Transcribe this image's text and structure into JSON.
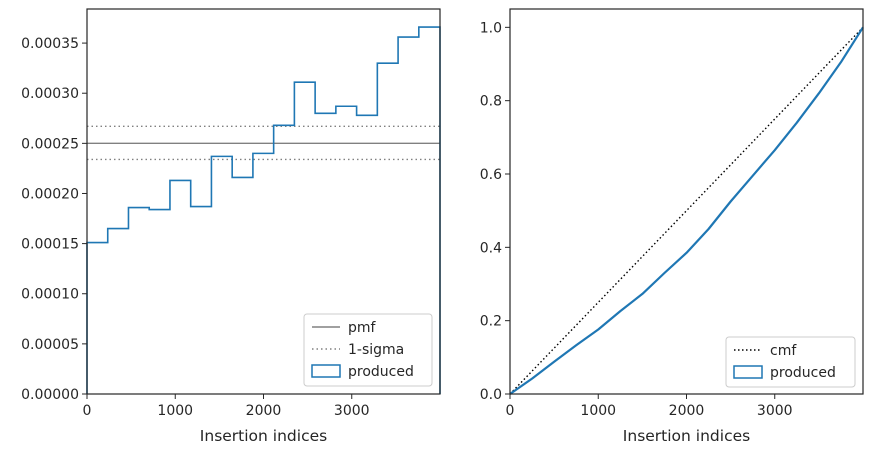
{
  "colors": {
    "produced": "#1f77b4",
    "pmf": "#808080",
    "sigma": "#808080",
    "cmf": "#000000",
    "frame": "#262626"
  },
  "chart_data": [
    {
      "type": "step",
      "xlabel": "Insertion indices",
      "ylabel": "",
      "xlim": [
        0,
        4000
      ],
      "ylim": [
        0,
        0.000384
      ],
      "xticks": [
        0,
        1000,
        2000,
        3000
      ],
      "xtick_labels": [
        "0",
        "1000",
        "2000",
        "3000"
      ],
      "yticks": [
        0,
        5e-05,
        0.0001,
        0.00015,
        0.0002,
        0.00025,
        0.0003,
        0.00035
      ],
      "ytick_labels": [
        "0.00000",
        "0.00005",
        "0.00010",
        "0.00015",
        "0.00020",
        "0.00025",
        "0.00030",
        "0.00035"
      ],
      "lines": [
        {
          "name": "pmf",
          "y": 0.00025,
          "style": "solid"
        },
        {
          "name": "1-sigma",
          "y": [
            0.000234,
            0.000267
          ],
          "style": "dotted"
        }
      ],
      "series": [
        {
          "name": "produced",
          "bin_edges": [
            0,
            235,
            470,
            705,
            940,
            1175,
            1410,
            1645,
            1880,
            2115,
            2350,
            2585,
            2820,
            3055,
            3290,
            3525,
            3760,
            4000
          ],
          "values": [
            0.000151,
            0.000165,
            0.000186,
            0.000184,
            0.000213,
            0.000187,
            0.000237,
            0.000216,
            0.00024,
            0.000268,
            0.000311,
            0.00028,
            0.000287,
            0.000278,
            0.00033,
            0.000356,
            0.000366
          ]
        }
      ],
      "legend": {
        "placement": "lower-right",
        "entries": [
          "pmf",
          "1-sigma",
          "produced"
        ]
      }
    },
    {
      "type": "line",
      "xlabel": "Insertion indices",
      "ylabel": "",
      "xlim": [
        0,
        4000
      ],
      "ylim": [
        0,
        1.05
      ],
      "xticks": [
        0,
        1000,
        2000,
        3000
      ],
      "xtick_labels": [
        "0",
        "1000",
        "2000",
        "3000"
      ],
      "yticks": [
        0,
        0.2,
        0.4,
        0.6,
        0.8,
        1.0
      ],
      "ytick_labels": [
        "0.0",
        "0.2",
        "0.4",
        "0.6",
        "0.8",
        "1.0"
      ],
      "series": [
        {
          "name": "cmf",
          "style": "dotted",
          "x": [
            0,
            4000
          ],
          "y": [
            0,
            1.0
          ]
        },
        {
          "name": "produced",
          "style": "solid",
          "x": [
            0,
            250,
            500,
            750,
            1000,
            1250,
            1500,
            1750,
            2000,
            2250,
            2500,
            2750,
            3000,
            3250,
            3500,
            3750,
            4000
          ],
          "y": [
            0,
            0.042,
            0.088,
            0.133,
            0.176,
            0.226,
            0.273,
            0.33,
            0.385,
            0.45,
            0.525,
            0.595,
            0.665,
            0.74,
            0.82,
            0.905,
            1.0
          ]
        }
      ],
      "legend": {
        "placement": "lower-right",
        "entries": [
          "cmf",
          "produced"
        ]
      }
    }
  ]
}
